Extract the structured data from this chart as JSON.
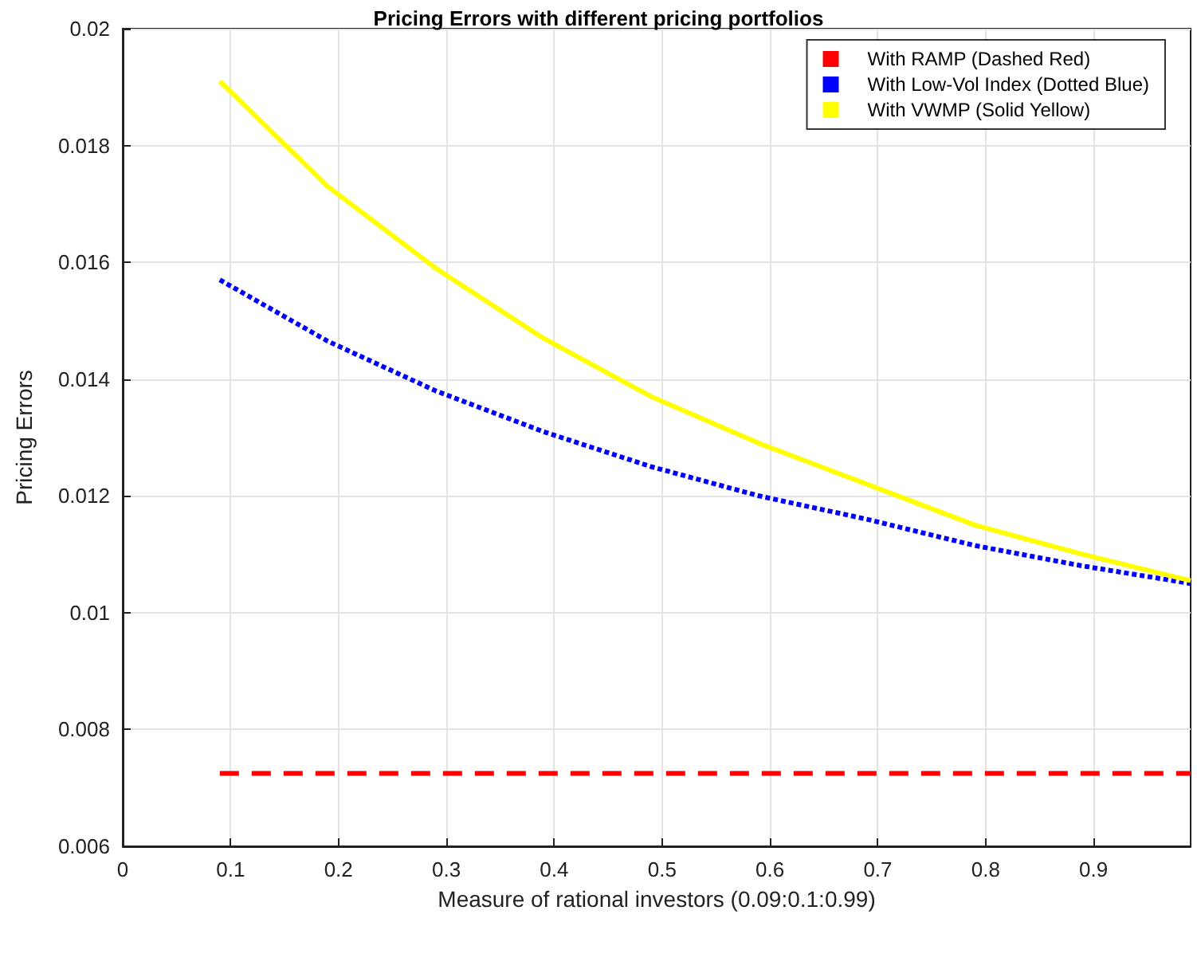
{
  "chart_data": {
    "type": "line",
    "title": "Pricing Errors with different pricing portfolios",
    "xlabel": "Measure of rational investors (0.09:0.1:0.99)",
    "ylabel": "Pricing Errors",
    "x": [
      0.09,
      0.19,
      0.29,
      0.39,
      0.49,
      0.59,
      0.69,
      0.79,
      0.89,
      0.99
    ],
    "series": [
      {
        "name": "With RAMP (Dashed Red)",
        "color": "#ff0000",
        "line_style": "dashed",
        "values": [
          0.00725,
          0.00725,
          0.00725,
          0.00725,
          0.00725,
          0.00725,
          0.00725,
          0.00725,
          0.00725,
          0.00725
        ]
      },
      {
        "name": "With Low-Vol Index (Dotted Blue)",
        "color": "#0000ff",
        "line_style": "dotted",
        "values": [
          0.0157,
          0.01465,
          0.0138,
          0.0131,
          0.0125,
          0.012,
          0.0116,
          0.01115,
          0.0108,
          0.0105
        ]
      },
      {
        "name": "With VWMP (Solid Yellow)",
        "color": "#ffff00",
        "line_style": "solid",
        "values": [
          0.0191,
          0.0173,
          0.0159,
          0.0147,
          0.0137,
          0.0129,
          0.0122,
          0.0115,
          0.011,
          0.01055
        ]
      }
    ],
    "xlim": [
      0,
      0.99
    ],
    "xticks": [
      0,
      0.1,
      0.2,
      0.3,
      0.4,
      0.5,
      0.6,
      0.7,
      0.8,
      0.9
    ],
    "ylim": [
      0.006,
      0.02
    ],
    "yticks": [
      0.006,
      0.008,
      0.01,
      0.012,
      0.014,
      0.016,
      0.018,
      0.02
    ],
    "grid": true,
    "legend": "top right",
    "marker": "none"
  }
}
